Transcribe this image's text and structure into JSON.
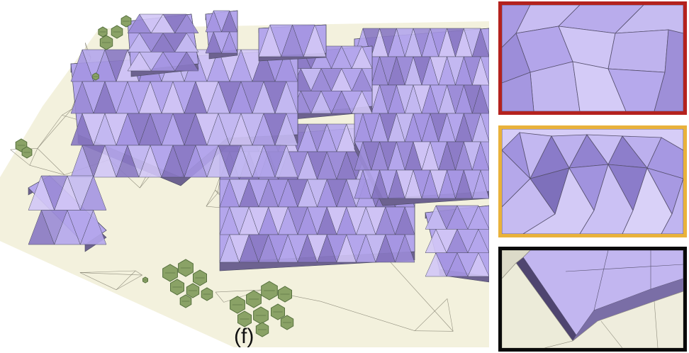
{
  "panel": {
    "label": "(f)"
  },
  "colors": {
    "ground": "#f3f1dd",
    "roof": "#b4a6ec",
    "roof_light": "#d1c7f6",
    "roof_dark": "#8878c3",
    "wall": "#6d6290",
    "edge": "#4b4b60",
    "tree": "#8aa266",
    "tree_dark": "#55703d",
    "inset_red": "#b4221e",
    "inset_yellow": "#e9b23b",
    "inset_black": "#0a0a0a"
  },
  "insets": [
    {
      "name": "inset-red",
      "border_color": "#b4221e"
    },
    {
      "name": "inset-yellow",
      "border_color": "#e9b23b"
    },
    {
      "name": "inset-black",
      "border_color": "#0a0a0a"
    }
  ]
}
